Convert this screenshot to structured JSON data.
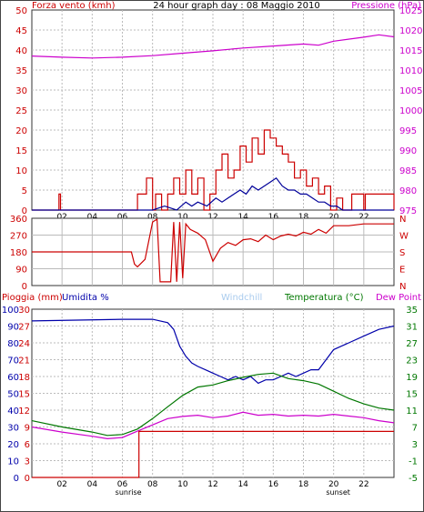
{
  "header": {
    "wind_label": "Forza vento (kmh)",
    "title": "24 hour graph day : 08 Maggio 2010",
    "pressure_label": "Pressione (hPa)"
  },
  "hour_ticks": [
    "02",
    "04",
    "06",
    "08",
    "10",
    "12",
    "14",
    "16",
    "18",
    "20",
    "22"
  ],
  "sun_labels": {
    "sunrise": "sunrise",
    "sunset": "sunset",
    "sunrise_hour": 6.4,
    "sunset_hour": 20.3
  },
  "colors": {
    "wind": "#cc0000",
    "pressure": "#cc00cc",
    "gust_avg": "#000099",
    "humidity": "#0000aa",
    "temperature": "#007700",
    "dew": "#cc00cc",
    "rain": "#cc0000",
    "windchill": "#aaccee",
    "grid": "#bbbbbb"
  },
  "chart_data": [
    {
      "type": "line",
      "title": "24 hour graph day : 08 Maggio 2010",
      "xlabel": "",
      "xlim": [
        0,
        24
      ],
      "ylabel_left": "Forza vento (kmh)",
      "ylim_left": [
        0,
        50
      ],
      "ylabel_right": "Pressione (hPa)",
      "ylim_right": [
        975,
        1025
      ],
      "yticks_left": [
        0,
        5,
        10,
        15,
        20,
        25,
        30,
        35,
        40,
        45,
        50
      ],
      "yticks_right": [
        975,
        980,
        985,
        990,
        995,
        1000,
        1005,
        1010,
        1015,
        1020,
        1025
      ],
      "grid": true,
      "series": [
        {
          "name": "Pressione (hPa)",
          "axis": "right",
          "style": "line",
          "x": [
            0,
            2,
            4,
            6,
            8,
            10,
            12,
            14,
            16,
            18,
            19,
            20,
            22,
            23,
            24
          ],
          "y": [
            1013.5,
            1013.2,
            1013.0,
            1013.2,
            1013.6,
            1014.2,
            1014.8,
            1015.5,
            1016.0,
            1016.5,
            1016.2,
            1017.2,
            1018.2,
            1018.8,
            1018.3
          ]
        },
        {
          "name": "Forza vento (kmh)",
          "axis": "left",
          "style": "step",
          "x": [
            0,
            1.8,
            1.9,
            6.8,
            7.0,
            7.6,
            8.0,
            8.2,
            8.6,
            9.0,
            9.4,
            9.8,
            10.2,
            10.6,
            11.0,
            11.4,
            11.8,
            12.2,
            12.6,
            13.0,
            13.4,
            13.8,
            14.2,
            14.6,
            15.0,
            15.4,
            15.8,
            16.2,
            16.6,
            17.0,
            17.4,
            17.8,
            18.2,
            18.6,
            19.0,
            19.4,
            19.8,
            20.2,
            20.6,
            21.0,
            21.2,
            22.0,
            22.1,
            24
          ],
          "y": [
            0,
            4,
            0,
            0,
            4,
            8,
            0,
            4,
            0,
            4,
            8,
            4,
            10,
            4,
            8,
            0,
            4,
            10,
            14,
            8,
            10,
            16,
            12,
            18,
            14,
            20,
            18,
            16,
            14,
            12,
            8,
            10,
            6,
            8,
            4,
            6,
            0,
            3,
            0,
            0,
            4,
            0,
            4,
            0
          ]
        },
        {
          "name": "",
          "axis": "left",
          "style": "line",
          "x": [
            0,
            8,
            8.8,
            9.6,
            10.2,
            10.6,
            11,
            11.6,
            12.2,
            12.6,
            13,
            13.4,
            13.8,
            14.2,
            14.6,
            15,
            15.4,
            15.8,
            16.2,
            16.6,
            17,
            17.4,
            17.8,
            18.2,
            18.6,
            19,
            19.4,
            19.8,
            20.2,
            20.6,
            24
          ],
          "y": [
            0,
            0,
            1,
            0,
            2,
            1,
            2,
            1,
            3,
            2,
            3,
            4,
            5,
            4,
            6,
            5,
            6,
            7,
            8,
            6,
            5,
            5,
            4,
            4,
            3,
            2,
            2,
            1,
            1,
            0,
            0
          ]
        }
      ]
    },
    {
      "type": "line",
      "title": "",
      "ylabel_right_ticks": [
        "N",
        "W",
        "S",
        "E",
        "N"
      ],
      "yticks_left": [
        0,
        90,
        180,
        270,
        360
      ],
      "ylim": [
        0,
        360
      ],
      "series": [
        {
          "name": "",
          "x": [
            0,
            6.6,
            6.8,
            7.0,
            7.5,
            8.0,
            8.3,
            8.5,
            8.7,
            9.0,
            9.2,
            9.4,
            9.6,
            9.8,
            10.0,
            10.2,
            10.5,
            11.0,
            11.5,
            12.0,
            12.5,
            13.0,
            13.5,
            14.0,
            14.5,
            15.0,
            15.5,
            16.0,
            16.5,
            17.0,
            17.5,
            18.0,
            18.5,
            19.0,
            19.5,
            20.0,
            21.0,
            22.0,
            22.5,
            24
          ],
          "y": [
            180,
            180,
            115,
            100,
            140,
            340,
            355,
            20,
            20,
            20,
            20,
            340,
            20,
            340,
            40,
            330,
            300,
            280,
            245,
            130,
            200,
            230,
            215,
            245,
            250,
            235,
            270,
            245,
            265,
            275,
            265,
            285,
            275,
            300,
            280,
            320,
            320,
            330,
            330,
            330
          ]
        }
      ]
    },
    {
      "type": "line",
      "title": "",
      "ylabel_left": "Pioggia (mm)",
      "ylim_left": [
        0,
        100
      ],
      "ylabel_humidity": "Umidita %",
      "ylabel_windchill": "Windchill",
      "ylabel_right": "Temperatura (°C)",
      "ylim_right": [
        -5,
        35
      ],
      "ylabel_dew": "Dew Point",
      "yticks_left": [
        0,
        10,
        20,
        30,
        40,
        50,
        60,
        70,
        80,
        90,
        100
      ],
      "yticks_rain": [
        0,
        3,
        6,
        9,
        12,
        15,
        18,
        21,
        24,
        27,
        30
      ],
      "yticks_right": [
        -5,
        -1,
        3,
        7,
        11,
        15,
        19,
        23,
        27,
        31,
        35
      ],
      "grid": true,
      "series": [
        {
          "name": "Umidita %",
          "axis": "left",
          "x": [
            0,
            6,
            8,
            9,
            9.4,
            9.8,
            10.2,
            10.6,
            11,
            11.5,
            12,
            12.5,
            13,
            13.5,
            14,
            14.5,
            15,
            15.5,
            16,
            16.5,
            17,
            17.5,
            18,
            18.5,
            19,
            19.5,
            20,
            21,
            22,
            23,
            24
          ],
          "y": [
            93,
            94,
            94,
            92,
            88,
            78,
            72,
            68,
            66,
            64,
            62,
            60,
            58,
            60,
            58,
            60,
            56,
            58,
            58,
            60,
            62,
            60,
            62,
            64,
            64,
            70,
            76,
            80,
            84,
            88,
            90
          ]
        },
        {
          "name": "Temperatura (°C)",
          "axis": "right",
          "x": [
            0,
            2,
            4,
            5,
            6,
            7,
            8,
            9,
            10,
            11,
            12,
            13,
            14,
            15,
            16,
            17,
            18,
            19,
            20,
            21,
            22,
            23,
            24
          ],
          "y": [
            8.5,
            7.0,
            5.8,
            5.0,
            5.2,
            6.5,
            9.0,
            11.8,
            14.5,
            16.5,
            17.0,
            18.0,
            18.8,
            19.5,
            19.8,
            18.5,
            18.0,
            17.2,
            15.5,
            13.8,
            12.5,
            11.5,
            11.0
          ]
        },
        {
          "name": "Dew Point",
          "axis": "right",
          "x": [
            0,
            2,
            4,
            5,
            6,
            7,
            8,
            9,
            10,
            11,
            12,
            13,
            14,
            15,
            16,
            17,
            18,
            19,
            20,
            21,
            22,
            23,
            24
          ],
          "y": [
            7.0,
            5.8,
            4.8,
            4.2,
            4.5,
            6.0,
            7.5,
            9.0,
            9.5,
            9.8,
            9.2,
            9.6,
            10.5,
            9.8,
            10.0,
            9.6,
            9.8,
            9.6,
            10.0,
            9.6,
            9.2,
            8.5,
            8.0
          ]
        },
        {
          "name": "Pioggia (mm)",
          "axis": "rain",
          "style": "step",
          "x": [
            0,
            7.1,
            7.1,
            24
          ],
          "y": [
            0,
            0,
            8.2,
            8.2
          ]
        }
      ]
    }
  ]
}
